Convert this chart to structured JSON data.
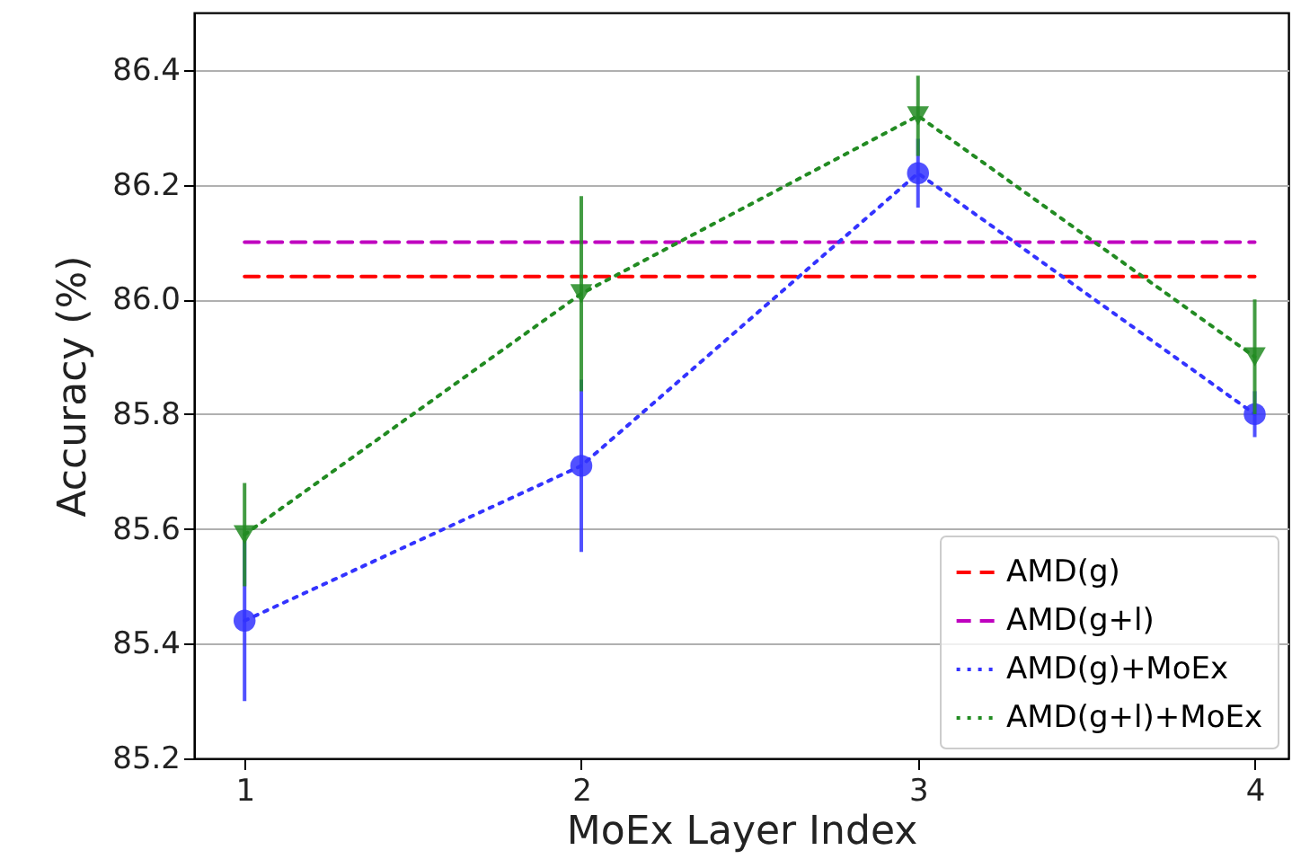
{
  "chart_data": {
    "type": "line",
    "xlabel": "MoEx Layer Index",
    "ylabel": "Accuracy (%)",
    "x": [
      1,
      2,
      3,
      4
    ],
    "xlim": [
      0.85,
      4.1
    ],
    "xticks": [
      1,
      2,
      3,
      4
    ],
    "ylim": [
      85.2,
      86.5
    ],
    "yticks": [
      85.2,
      85.4,
      85.6,
      85.8,
      {
        "value": 86,
        "label": "86.0"
      },
      86.2,
      86.4
    ],
    "grid": "y",
    "legend": "bottom right",
    "series": [
      {
        "name": "AMD(g)",
        "color": "#ff0000",
        "values": [
          86.04,
          86.04,
          86.04,
          86.04
        ],
        "line_style": "dashed",
        "marker": "none"
      },
      {
        "name": "AMD(g+l)",
        "color": "#bf00bf",
        "values": [
          86.1,
          86.1,
          86.1,
          86.1
        ],
        "line_style": "dashed",
        "marker": "none"
      },
      {
        "name": "AMD(g)+MoEx",
        "color": "#3333ff",
        "values": [
          85.44,
          85.71,
          86.22,
          85.8
        ],
        "errors": [
          0.14,
          0.15,
          0.06,
          0.04
        ],
        "line_style": "dotted",
        "marker": "circle"
      },
      {
        "name": "AMD(g+l)+MoEx",
        "color": "#228b22",
        "values": [
          85.59,
          86.01,
          86.32,
          85.9
        ],
        "errors": [
          0.09,
          0.17,
          0.07,
          0.1
        ],
        "line_style": "dotted",
        "marker": "triangle"
      }
    ]
  }
}
